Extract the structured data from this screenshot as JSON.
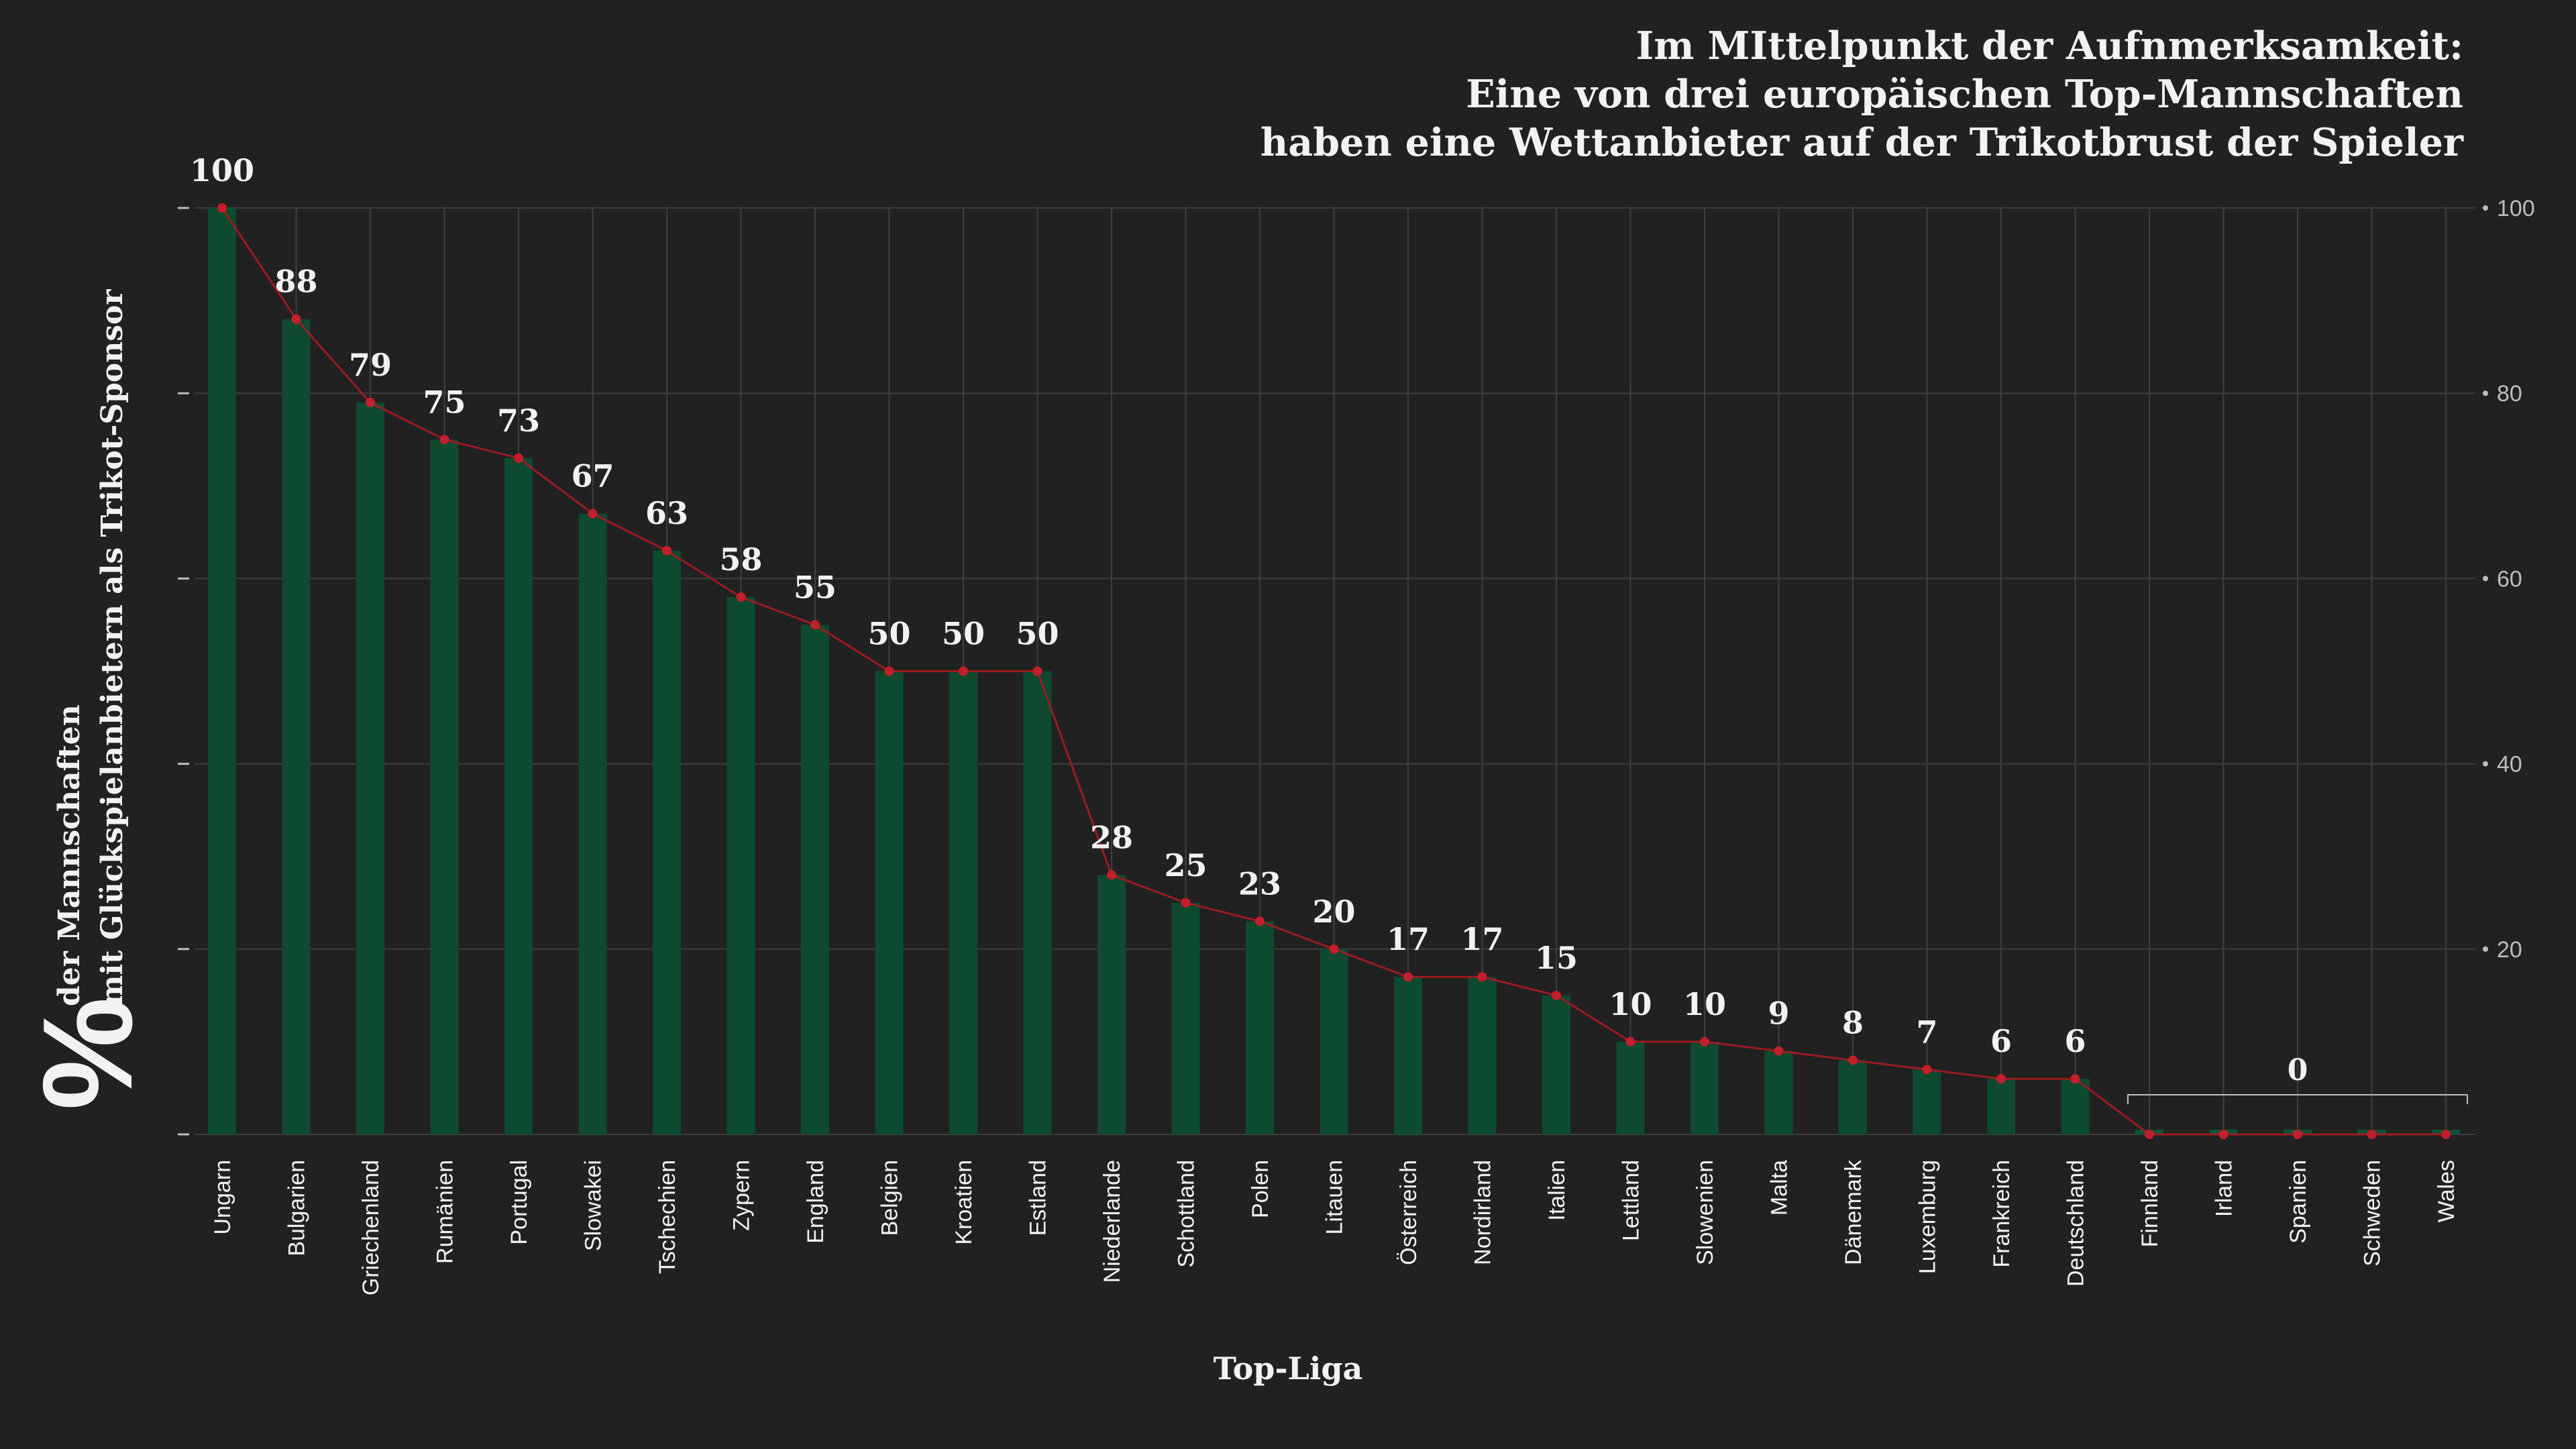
{
  "colors": {
    "background": "#212121",
    "bar": "#0d4a30",
    "bar_zero": "#0f5236",
    "line": "#9b1b22",
    "marker": "#c21f2a",
    "grid": "#3e3e3e",
    "text": "#f2f2f2",
    "tick": "#bdbdbd"
  },
  "title": {
    "line1": "Im MIttelpunkt der Aufnmerksamkeit:",
    "line2": "Eine von drei europäischen Top-Mannschaften",
    "line3": "haben eine Wettanbieter auf der Trikotbrust der Spieler"
  },
  "y_axis": {
    "percent_symbol": "%",
    "label_line1": "der Mannschaften",
    "label_line2": "mit Glückspielanbietern als Trikot-Sponsor"
  },
  "x_axis": {
    "label": "Top-Liga"
  },
  "zero_group_label": "0",
  "chart_data": {
    "type": "bar",
    "title": "Im MIttelpunkt der Aufnmerksamkeit: Eine von drei europäischen Top-Mannschaften haben eine Wettanbieter auf der Trikotbrust der Spieler",
    "xlabel": "Top-Liga",
    "ylabel": "% der Mannschaften mit Glückspielanbietern als Trikot-Sponsor",
    "ylim": [
      0,
      100
    ],
    "y_ticks_right": [
      20,
      40,
      60,
      80,
      100
    ],
    "grid": true,
    "overlay_line": true,
    "categories": [
      "Ungarn",
      "Bulgarien",
      "Griechenland",
      "Rumänien",
      "Portugal",
      "Slowakei",
      "Tschechien",
      "Zypern",
      "England",
      "Belgien",
      "Kroatien",
      "Estland",
      "Niederlande",
      "Schottland",
      "Polen",
      "Litauen",
      "Österreich",
      "Nordirland",
      "Italien",
      "Lettland",
      "Slowenien",
      "Malta",
      "Dänemark",
      "Luxemburg",
      "Frankreich",
      "Deutschland",
      "Finnland",
      "Irland",
      "Spanien",
      "Schweden",
      "Wales"
    ],
    "values": [
      100,
      88,
      79,
      75,
      73,
      67,
      63,
      58,
      55,
      50,
      50,
      50,
      28,
      25,
      23,
      20,
      17,
      17,
      15,
      10,
      10,
      9,
      8,
      7,
      6,
      6,
      0,
      0,
      0,
      0,
      0
    ],
    "value_labels": [
      "100",
      "88",
      "79",
      "75",
      "73",
      "67",
      "63",
      "58",
      "55",
      "50",
      "50",
      "50",
      "28",
      "25",
      "23",
      "20",
      "17",
      "17",
      "15",
      "10",
      "10",
      "9",
      "8",
      "7",
      "6",
      "6",
      "",
      "",
      "",
      "",
      ""
    ]
  }
}
